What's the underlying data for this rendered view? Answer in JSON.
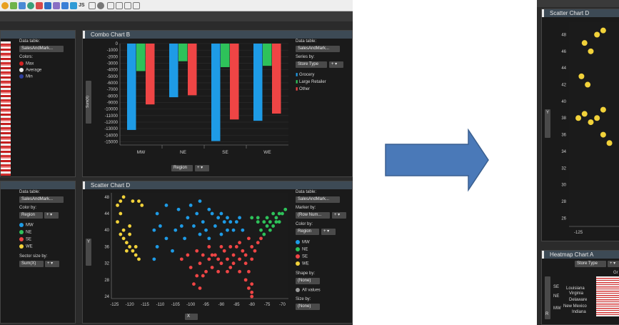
{
  "colors": {
    "mw": "#1e9be6",
    "ne": "#2ec25a",
    "se": "#ef4545",
    "we": "#f2d23a",
    "arrow": "#4a79b8"
  },
  "left_top_panel": {
    "data_table_label": "Data table:",
    "data_table_value": "SalesAndMark...",
    "colors_label": "Colors:",
    "legend": [
      "Max",
      "Average",
      "Min"
    ]
  },
  "combo": {
    "title": "Combo Chart B",
    "data_table_label": "Data table:",
    "data_table_value": "SalesAndMark...",
    "series_label": "Series by:",
    "series_value": "Store Type",
    "legend": [
      "Grocery",
      "Large Retailer",
      "Other"
    ],
    "ylabel": "Sum(X)",
    "xaxis_dropdown": "Region"
  },
  "left_bottom_panel": {
    "data_table_label": "Data table:",
    "data_table_value": "SalesAndMark...",
    "color_by_label": "Color by:",
    "color_by_value": "Region",
    "legend": [
      "MW",
      "NE",
      "SE",
      "WE"
    ],
    "sector_label": "Sector size by:",
    "sector_value": "Sum(X)"
  },
  "scatterD": {
    "title": "Scatter Chart D",
    "data_table_label": "Data table:",
    "data_table_value": "SalesAndMark...",
    "marker_label": "Marker by:",
    "marker_value": "(Row Num...",
    "color_by_label": "Color by:",
    "color_by_value": "Region",
    "legend": [
      "MW",
      "NE",
      "SE",
      "WE"
    ],
    "shape_label": "Shape by:",
    "shape_value": "(None)",
    "all_values": "All values",
    "size_label": "Size by:",
    "size_value": "(None)",
    "xaxis_dropdown": "X",
    "ylabel": "Y"
  },
  "right_scatter": {
    "title": "Scatter Chart D",
    "ylabel": "Y",
    "xtick": "-125"
  },
  "heatmap": {
    "title": "Heatmap Chart A",
    "dropdown": "Store Type",
    "col_label": "Gr",
    "ylabel": "R",
    "groups": [
      "SE",
      "NE",
      "MW"
    ],
    "rows": [
      "Louisiana",
      "Virginia",
      "Delaware",
      "New Mexico",
      "Indiana"
    ]
  },
  "chart_data": [
    {
      "type": "bar",
      "title": "Combo Chart B",
      "categories": [
        "MW",
        "NE",
        "SE",
        "WE"
      ],
      "series": [
        {
          "name": "Grocery",
          "values": [
            -13200,
            -8200,
            -14900,
            -11800
          ]
        },
        {
          "name": "Large Retailer",
          "values": [
            -4200,
            -2700,
            -3600,
            -3400
          ]
        },
        {
          "name": "Other",
          "values": [
            -9300,
            -7900,
            -11600,
            -10700
          ]
        }
      ],
      "ylabel": "Sum(X)",
      "ylim": [
        -15500,
        0
      ],
      "yticks": [
        0,
        -1000,
        -2000,
        -3000,
        -4000,
        -5000,
        -6000,
        -7000,
        -8000,
        -9000,
        -10000,
        -11000,
        -12000,
        -13000,
        -14000,
        -15000
      ],
      "grid": true,
      "legend": "right"
    },
    {
      "type": "scatter",
      "title": "Scatter Chart D",
      "xlabel": "X",
      "ylabel": "Y",
      "xlim": [
        -126,
        -68
      ],
      "ylim": [
        23.5,
        49
      ],
      "xticks": [
        -125,
        -120,
        -115,
        -110,
        -105,
        -100,
        -95,
        -90,
        -85,
        -80,
        -75,
        -70
      ],
      "yticks": [
        24,
        28,
        32,
        36,
        40,
        44,
        48
      ],
      "series": [
        {
          "name": "WE",
          "points": [
            [
              -124,
              46
            ],
            [
              -123,
              44
            ],
            [
              -124,
              42
            ],
            [
              -123,
              39
            ],
            [
              -122,
              38
            ],
            [
              -121,
              37
            ],
            [
              -120,
              36
            ],
            [
              -119,
              35
            ],
            [
              -118,
              34
            ],
            [
              -117,
              33
            ],
            [
              -122,
              40
            ],
            [
              -120,
              39
            ],
            [
              -121,
              35
            ],
            [
              -123,
              47
            ],
            [
              -122,
              48
            ],
            [
              -117,
              47
            ],
            [
              -116,
              46
            ],
            [
              -119,
              47
            ],
            [
              -120,
              41
            ],
            [
              -118,
              36
            ]
          ]
        },
        {
          "name": "MW",
          "points": [
            [
              -111,
              44
            ],
            [
              -108,
              46
            ],
            [
              -104,
              45
            ],
            [
              -100,
              46
            ],
            [
              -97,
              47
            ],
            [
              -94,
              45
            ],
            [
              -93,
              44
            ],
            [
              -90,
              44
            ],
            [
              -88,
              43
            ],
            [
              -87,
              42
            ],
            [
              -85,
              42
            ],
            [
              -84,
              43
            ],
            [
              -86,
              40
            ],
            [
              -88,
              40
            ],
            [
              -90,
              39
            ],
            [
              -92,
              41
            ],
            [
              -95,
              40
            ],
            [
              -97,
              39
            ],
            [
              -99,
              41
            ],
            [
              -101,
              43
            ],
            [
              -105,
              40
            ],
            [
              -108,
              38
            ],
            [
              -110,
              41
            ],
            [
              -112,
              40
            ],
            [
              -106,
              35
            ],
            [
              -112,
              33
            ],
            [
              -111,
              36
            ],
            [
              -103,
              41
            ],
            [
              -96,
              42
            ],
            [
              -83,
              40
            ],
            [
              -89,
              42
            ],
            [
              -91,
              43
            ],
            [
              -98,
              44
            ],
            [
              -94,
              38
            ],
            [
              -102,
              38
            ]
          ]
        },
        {
          "name": "NE",
          "points": [
            [
              -80,
              43
            ],
            [
              -78,
              43
            ],
            [
              -76,
              42
            ],
            [
              -75,
              43
            ],
            [
              -73,
              44
            ],
            [
              -72,
              43
            ],
            [
              -71,
              42
            ],
            [
              -70,
              44
            ],
            [
              -73,
              41
            ],
            [
              -75,
              41
            ],
            [
              -74,
              40
            ],
            [
              -77,
              40
            ],
            [
              -76,
              39
            ],
            [
              -72,
              42
            ],
            [
              -69,
              45
            ],
            [
              -71,
              44
            ],
            [
              -78,
              42
            ],
            [
              -74,
              42
            ]
          ]
        },
        {
          "name": "SE",
          "points": [
            [
              -95,
              30
            ],
            [
              -93,
              31
            ],
            [
              -91,
              30
            ],
            [
              -90,
              32
            ],
            [
              -88,
              33
            ],
            [
              -86,
              34
            ],
            [
              -84,
              33
            ],
            [
              -82,
              32
            ],
            [
              -81,
              30
            ],
            [
              -80,
              27
            ],
            [
              -81,
              26
            ],
            [
              -80,
              25
            ],
            [
              -82,
              28
            ],
            [
              -84,
              30
            ],
            [
              -87,
              31
            ],
            [
              -89,
              35
            ],
            [
              -92,
              34
            ],
            [
              -94,
              33
            ],
            [
              -97,
              32
            ],
            [
              -98,
              29
            ],
            [
              -99,
              27
            ],
            [
              -97,
              26
            ],
            [
              -96,
              29
            ],
            [
              -100,
              31
            ],
            [
              -85,
              36
            ],
            [
              -83,
              35
            ],
            [
              -80,
              36
            ],
            [
              -79,
              35
            ],
            [
              -78,
              37
            ],
            [
              -77,
              38
            ],
            [
              -81,
              38
            ],
            [
              -84,
              37
            ],
            [
              -87,
              36
            ],
            [
              -90,
              36
            ],
            [
              -94,
              36
            ],
            [
              -96,
              34
            ],
            [
              -86,
              32
            ],
            [
              -82,
              34
            ],
            [
              -88,
              30
            ],
            [
              -91,
              33
            ],
            [
              -93,
              34
            ],
            [
              -80,
              33
            ],
            [
              -101,
              34
            ],
            [
              -103,
              33
            ],
            [
              -98,
              35
            ],
            [
              -80,
              24
            ]
          ]
        }
      ]
    },
    {
      "type": "scatter",
      "title": "Scatter Chart D",
      "ylabel": "Y",
      "yticks": [
        26,
        28,
        30,
        32,
        34,
        36,
        38,
        40,
        42,
        44,
        46,
        48
      ],
      "ylim": [
        25,
        49.5
      ],
      "xticks": [
        -125
      ],
      "series": [
        {
          "name": "WE",
          "points": [
            [
              -124,
              47
            ],
            [
              -123,
              46
            ],
            [
              -122,
              48
            ],
            [
              -121,
              48.5
            ],
            [
              -124.5,
              43
            ],
            [
              -123.5,
              42
            ],
            [
              -125,
              38
            ],
            [
              -124,
              38.5
            ],
            [
              -123,
              37.5
            ],
            [
              -122,
              38
            ],
            [
              -121,
              39
            ],
            [
              -121,
              36
            ],
            [
              -120,
              35
            ]
          ]
        }
      ]
    }
  ]
}
